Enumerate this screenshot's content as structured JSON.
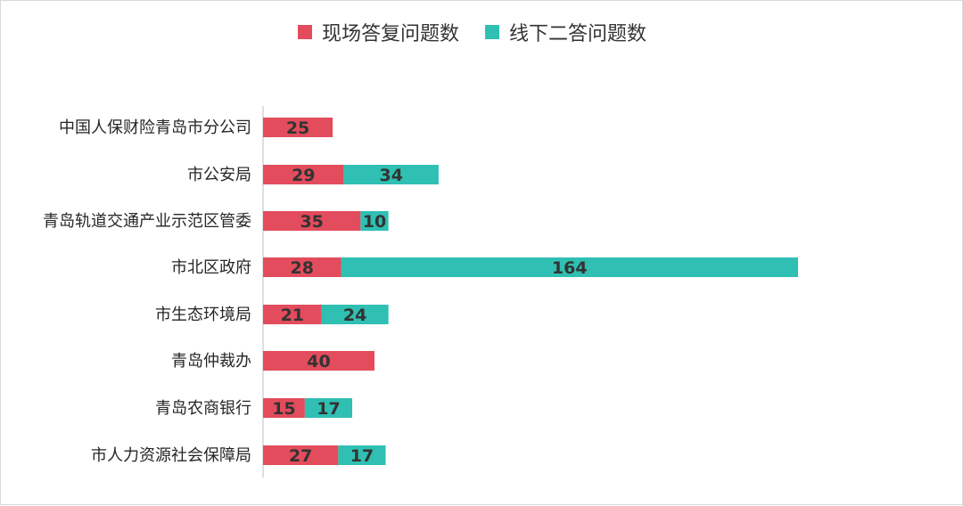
{
  "chart_data": {
    "type": "bar",
    "orientation": "horizontal",
    "stacked": true,
    "title": "",
    "xlabel": "",
    "ylabel": "",
    "legend_position": "top",
    "grid": false,
    "categories": [
      "中国人保财险青岛市分公司",
      "市公安局",
      "青岛轨道交通产业示范区管委",
      "市北区政府",
      "市生态环境局",
      "青岛仲裁办",
      "青岛农商银行",
      "市人力资源社会保障局"
    ],
    "series": [
      {
        "name": "现场答复问题数",
        "color": "#e34c5c",
        "values": [
          25,
          29,
          35,
          28,
          21,
          40,
          15,
          27
        ]
      },
      {
        "name": "线下二答问题数",
        "color": "#2fbfb3",
        "values": [
          null,
          34,
          10,
          164,
          24,
          null,
          17,
          17
        ]
      }
    ],
    "xlim": [
      0,
      192
    ]
  }
}
